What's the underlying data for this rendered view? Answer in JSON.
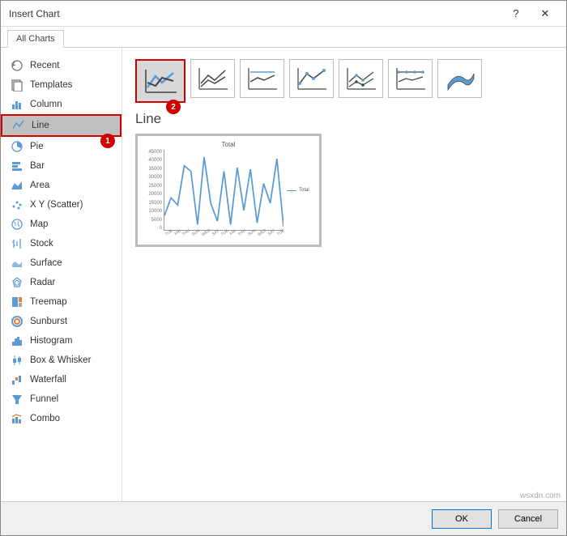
{
  "dialog": {
    "title": "Insert Chart",
    "help_glyph": "?",
    "close_glyph": "✕"
  },
  "tab": {
    "label": "All Charts"
  },
  "sidebar": {
    "items": [
      {
        "label": "Recent"
      },
      {
        "label": "Templates"
      },
      {
        "label": "Column"
      },
      {
        "label": "Line"
      },
      {
        "label": "Pie"
      },
      {
        "label": "Bar"
      },
      {
        "label": "Area"
      },
      {
        "label": "X Y (Scatter)"
      },
      {
        "label": "Map"
      },
      {
        "label": "Stock"
      },
      {
        "label": "Surface"
      },
      {
        "label": "Radar"
      },
      {
        "label": "Treemap"
      },
      {
        "label": "Sunburst"
      },
      {
        "label": "Histogram"
      },
      {
        "label": "Box & Whisker"
      },
      {
        "label": "Waterfall"
      },
      {
        "label": "Funnel"
      },
      {
        "label": "Combo"
      }
    ],
    "selected_index": 3,
    "accent_color": "#5b9bd5",
    "gray_color": "#7a7a7a"
  },
  "annotations": {
    "badge1": "1",
    "badge2": "2"
  },
  "main": {
    "chart_type_label": "Line",
    "selected_subtype": 0
  },
  "preview": {
    "type": "line",
    "title": "Total",
    "legend_label": "Total",
    "line_color": "#5b9bd5",
    "ylim": [
      0,
      45000
    ],
    "ytick_step": 5000,
    "yticks": [
      "45000",
      "40000",
      "35000",
      "30000",
      "25000",
      "20000",
      "15000",
      "10000",
      "5000",
      "0"
    ],
    "xlabels": [
      "TUE",
      "FRI",
      "THU",
      "SUN",
      "WED",
      "SAT",
      "TUE",
      "FRI",
      "THU",
      "SUN",
      "WED",
      "SAT",
      "TUE"
    ],
    "values": [
      8000,
      18000,
      14000,
      36000,
      33000,
      3000,
      41000,
      15000,
      5000,
      33000,
      3000,
      35000,
      11000,
      34000,
      4000,
      26000,
      15000,
      40000,
      2000
    ]
  },
  "footer": {
    "ok": "OK",
    "cancel": "Cancel"
  },
  "watermark": "wsxdn.com"
}
